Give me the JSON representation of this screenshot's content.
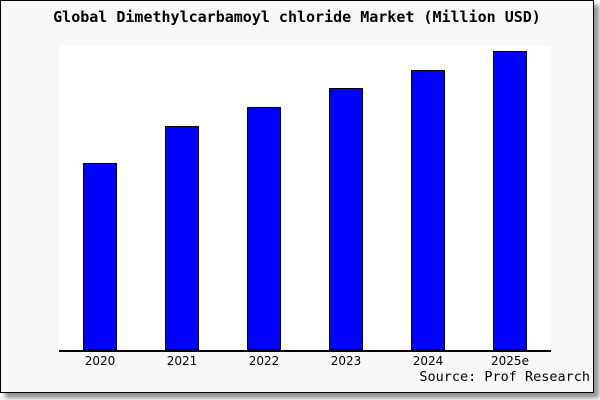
{
  "chart_data": {
    "type": "bar",
    "title": "Global Dimethylcarbamoyl chloride Market (Million USD)",
    "categories": [
      "2020",
      "2021",
      "2022",
      "2023",
      "2024",
      "2025e"
    ],
    "values": [
      62.5,
      74.9,
      81.3,
      87.6,
      93.6,
      100
    ],
    "values_note": "No y-axis, gridlines or value labels are shown in the chart; values are relative bar heights normalized to 2025e = 100.",
    "xlabel": "",
    "ylabel": "",
    "grid": false,
    "y_axis_shown": false,
    "legend_shown": false,
    "source_label": "Source: Prof Research",
    "colors": {
      "bar_fill": "#0000ff",
      "bar_border": "#000000",
      "plot_background": "#ffffff",
      "frame_background": "#f8f8f8",
      "frame_border": "#000000",
      "text": "#000000"
    }
  }
}
